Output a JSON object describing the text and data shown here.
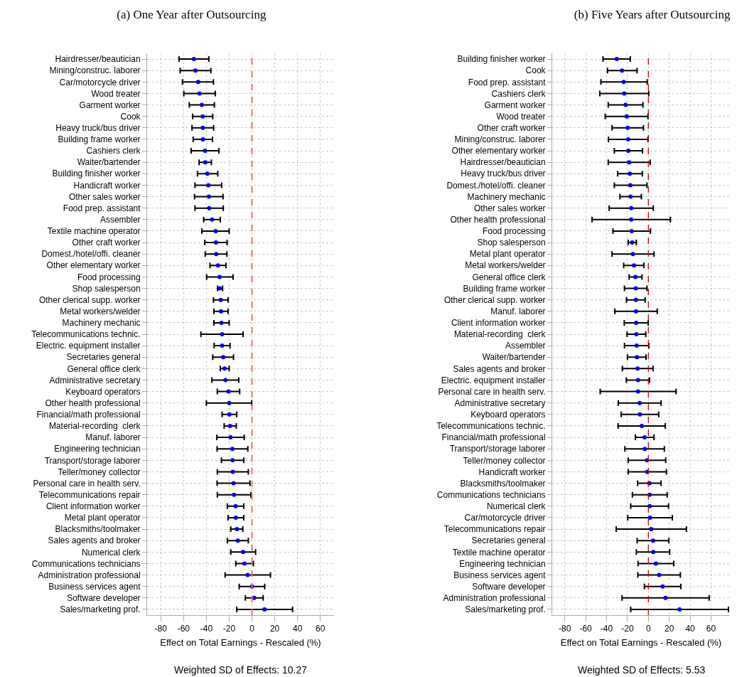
{
  "chart_data": [
    {
      "type": "scatter",
      "orientation": "horizontal",
      "title": "(a) One Year after Outsourcing",
      "xlabel": "Effect on Total Earnings - Rescaled (%)",
      "annotations": [
        "Weighted SD of Effects: 10.27"
      ],
      "categories": [
        "Hairdresser/beautician",
        "Mining/construc. laborer",
        "Car/motorcycle driver",
        "Wood treater",
        "Garment worker",
        "Cook",
        "Heavy truck/bus driver",
        "Building frame worker",
        "Cashiers clerk",
        "Waiter/bartender",
        "Building finisher worker",
        "Handicraft worker",
        "Other sales worker",
        "Food prep. assistant",
        "Assembler",
        "Textile machine operator",
        "Other craft worker",
        "Domest./hotel/offi. cleaner",
        "Other elementary worker",
        "Food processing",
        "Shop salesperson",
        "Other clerical supp. worker",
        "Metal workers/welder",
        "Machinery mechanic",
        "Telecommunications technic.",
        "Electric. equipment installer",
        "Secretaries general",
        "General office clerk",
        "Administrative secretary",
        "Keyboard operators",
        "Other health professional",
        "Financial/math professional",
        "Material-recording  clerk",
        "Manuf. laborer",
        "Engineering technician",
        "Transport/storage laborer",
        "Teller/money collector",
        "Personal care in health serv.",
        "Telecommunications repair",
        "Client information worker",
        "Metal plant operator",
        "Blacksmiths/toolmaker",
        "Sales agents and broker",
        "Numerical clerk",
        "Communications technicians",
        "Administration professional",
        "Business services agent",
        "Software developer",
        "Sales/marketing prof."
      ],
      "series": [
        {
          "color": "#0000ff",
          "values": [
            -51,
            -49.6,
            -47.2,
            -46,
            -44,
            -43.2,
            -43.2,
            -43,
            -41.2,
            -41,
            -39.2,
            -38.2,
            -37.8,
            -37.6,
            -35,
            -31.8,
            -31.6,
            -31.4,
            -29.8,
            -28.4,
            -28.4,
            -27.4,
            -27.2,
            -26.8,
            -26.2,
            -26.2,
            -25.2,
            -24,
            -23.2,
            -20.6,
            -20,
            -19.8,
            -19.2,
            -18.8,
            -17.2,
            -17,
            -16.8,
            -16.2,
            -15.8,
            -14.4,
            -14.2,
            -13.2,
            -12.4,
            -7.8,
            -6.6,
            -3.8,
            0,
            2,
            11
          ],
          "errors": [
            [
              -64,
              -37.8
            ],
            [
              -63,
              -36
            ],
            [
              -61,
              -33.8
            ],
            [
              -59.8,
              -32.2
            ],
            [
              -55,
              -33
            ],
            [
              -52,
              -34.4
            ],
            [
              -52.6,
              -33.6
            ],
            [
              -51.6,
              -34.6
            ],
            [
              -53.4,
              -29
            ],
            [
              -46.4,
              -35.6
            ],
            [
              -47.8,
              -30
            ],
            [
              -50,
              -26.6
            ],
            [
              -50.4,
              -25.4
            ],
            [
              -50,
              -25.2
            ],
            [
              -42.4,
              -27.8
            ],
            [
              -44,
              -20
            ],
            [
              -41.4,
              -21.8
            ],
            [
              -41,
              -22
            ],
            [
              -36.8,
              -22.8
            ],
            [
              -39.8,
              -16.6
            ],
            [
              -30.2,
              -25.8
            ],
            [
              -33.8,
              -21
            ],
            [
              -33.4,
              -21
            ],
            [
              -33.4,
              -20
            ],
            [
              -44.8,
              -7.8
            ],
            [
              -33.2,
              -19.2
            ],
            [
              -34.4,
              -16.2
            ],
            [
              -27.8,
              -20
            ],
            [
              -35.2,
              -11.6
            ],
            [
              -30.4,
              -10.8
            ],
            [
              -40,
              -0.2
            ],
            [
              -26.2,
              -13.4
            ],
            [
              -24.4,
              -13.8
            ],
            [
              -30.8,
              -6.8
            ],
            [
              -30.6,
              -3.6
            ],
            [
              -26.8,
              -7.2
            ],
            [
              -30.4,
              -3.2
            ],
            [
              -30.6,
              -1.8
            ],
            [
              -30.4,
              -1
            ],
            [
              -21.6,
              -7.2
            ],
            [
              -21,
              -7.2
            ],
            [
              -18.6,
              -8
            ],
            [
              -21.6,
              -3.2
            ],
            [
              -18.6,
              3.2
            ],
            [
              -14.2,
              1.2
            ],
            [
              -23.6,
              16.2
            ],
            [
              -11.2,
              11.2
            ],
            [
              -5.8,
              9.8
            ],
            [
              -13.4,
              35.6
            ]
          ]
        }
      ],
      "xlim": [
        -92,
        72
      ],
      "xticks": [
        -80,
        -60,
        -40,
        -20,
        0,
        20,
        40,
        60
      ],
      "grid": true,
      "marker": "circle",
      "ref_lines": [
        {
          "axis": "x",
          "value": 0,
          "color": "#ff6666",
          "line_style": "dashed"
        }
      ]
    },
    {
      "type": "scatter",
      "orientation": "horizontal",
      "title": "(b) Five Years after Outsourcing",
      "xlabel": "Effect on Total Earnings - Rescaled (%)",
      "annotations": [
        "Weighted SD of Effects: 5.53"
      ],
      "categories": [
        "Building finisher worker",
        "Cook",
        "Food prep. assistant",
        "Cashiers clerk",
        "Garment worker",
        "Wood treater",
        "Other craft worker",
        "Mining/construc. laborer",
        "Other elementary worker",
        "Hairdresser/beautician",
        "Heavy truck/bus driver",
        "Domest./hotel/offi. cleaner",
        "Machinery mechanic",
        "Other sales worker",
        "Other health professional",
        "Food processing",
        "Shop salesperson",
        "Metal plant operator",
        "Metal workers/welder",
        "General office clerk",
        "Building frame worker",
        "Other clerical supp. worker",
        "Manuf. laborer",
        "Client information worker",
        "Material-recording  clerk",
        "Assembler",
        "Waiter/bartender",
        "Sales agents and broker",
        "Electric. equipment installer",
        "Personal care in health serv.",
        "Administrative secretary",
        "Keyboard operators",
        "Telecommunications technic.",
        "Financial/math professional",
        "Transport/storage laborer",
        "Teller/money collector",
        "Handicraft worker",
        "Blacksmiths/toolmaker",
        "Communications technicians",
        "Numerical clerk",
        "Car/motorcycle driver",
        "Telecommunications repair",
        "Secretaries general",
        "Textile machine operator",
        "Engineering technician",
        "Business services agent",
        "Software developer",
        "Administration professional",
        "Sales/marketing prof."
      ],
      "series": [
        {
          "color": "#0000ff",
          "values": [
            -30.3,
            -25.2,
            -23.6,
            -23.1,
            -21.8,
            -20.7,
            -19.8,
            -19.3,
            -19.1,
            -18.4,
            -17.8,
            -17.3,
            -17.1,
            -16.4,
            -16.4,
            -16,
            -15.5,
            -14.8,
            -13.7,
            -12.4,
            -12.1,
            -11.9,
            -11.9,
            -11.7,
            -11.5,
            -11.2,
            -11,
            -10.3,
            -9.9,
            -9.9,
            -8.3,
            -8.1,
            -6.3,
            -3.6,
            -3.4,
            -1.3,
            -1.1,
            0.9,
            1.1,
            1.3,
            1.6,
            2.7,
            4.5,
            4.7,
            7.2,
            10.3,
            13.7,
            16.4,
            29.9
          ],
          "errors": [
            [
              -43.4,
              -17.3
            ],
            [
              -39.1,
              -10.8
            ],
            [
              -45.4,
              -1.1
            ],
            [
              -46.5,
              0.4
            ],
            [
              -38.4,
              -5.2
            ],
            [
              -41.3,
              -0.4
            ],
            [
              -34.8,
              -4.7
            ],
            [
              -38.2,
              -0.4
            ],
            [
              -32.6,
              -5.6
            ],
            [
              -38.4,
              1.8
            ],
            [
              -29.4,
              -5.8
            ],
            [
              -32.6,
              -1.3
            ],
            [
              -27.2,
              -6.7
            ],
            [
              -37.5,
              4.7
            ],
            [
              -53.9,
              21.1
            ],
            [
              -33.9,
              2
            ],
            [
              -19.3,
              -11.5
            ],
            [
              -34.8,
              5.4
            ],
            [
              -23.6,
              -4.3
            ],
            [
              -18.4,
              -6.1
            ],
            [
              -22.9,
              -1.3
            ],
            [
              -20.9,
              -3.1
            ],
            [
              -32.1,
              8.5
            ],
            [
              -23.1,
              -0.2
            ],
            [
              -20.4,
              -2.5
            ],
            [
              -22.9,
              0.4
            ],
            [
              -20,
              -2.2
            ],
            [
              -24.9,
              4.5
            ],
            [
              -21.1,
              1.1
            ],
            [
              -46.1,
              26.5
            ],
            [
              -28.8,
              12.1
            ],
            [
              -26.1,
              9.9
            ],
            [
              -29,
              16.2
            ],
            [
              -12.4,
              5.4
            ],
            [
              -22.5,
              15.3
            ],
            [
              -19.3,
              16.6
            ],
            [
              -19.3,
              17.3
            ],
            [
              -10.3,
              12.1
            ],
            [
              -15.3,
              18
            ],
            [
              -16.9,
              19.3
            ],
            [
              -19.8,
              22.9
            ],
            [
              -30.8,
              36.4
            ],
            [
              -10.8,
              19.6
            ],
            [
              -11.5,
              20.4
            ],
            [
              -9.9,
              24.3
            ],
            [
              -10.1,
              30.6
            ],
            [
              -3.8,
              31
            ],
            [
              -25.2,
              58.2
            ],
            [
              -16.9,
              76.6
            ]
          ]
        }
      ],
      "xlim": [
        -92,
        78
      ],
      "xticks": [
        -80,
        -60,
        -40,
        -20,
        0,
        20,
        40,
        60
      ],
      "grid": true,
      "marker": "circle",
      "ref_lines": [
        {
          "axis": "x",
          "value": 0,
          "color": "#cc0000",
          "line_style": "dashed"
        }
      ]
    }
  ]
}
